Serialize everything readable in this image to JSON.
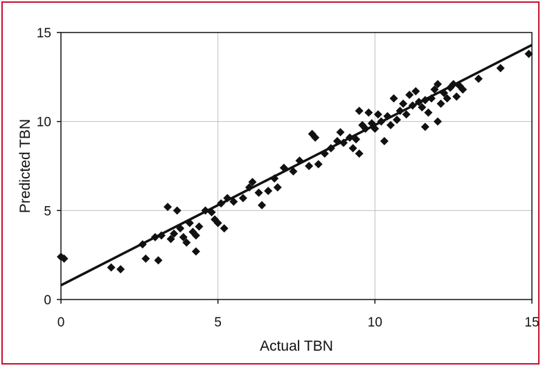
{
  "chart_data": {
    "type": "scatter",
    "title": "",
    "xlabel": "Actual TBN",
    "ylabel": "Predicted TBN",
    "xlim": [
      0,
      15
    ],
    "ylim": [
      0,
      15
    ],
    "x_ticks": [
      "0",
      "5",
      "10",
      "15"
    ],
    "y_ticks": [
      "0",
      "5",
      "10",
      "15"
    ],
    "grid": true,
    "colors": {
      "frame": "#c8102e",
      "points": "#111111",
      "line": "#111111",
      "grid": "#bfbfbf"
    },
    "trend_line": {
      "x": [
        0,
        15
      ],
      "y": [
        0.8,
        14.3
      ]
    },
    "points": [
      {
        "x": 0.0,
        "y": 2.4
      },
      {
        "x": 0.1,
        "y": 2.3
      },
      {
        "x": 1.6,
        "y": 1.8
      },
      {
        "x": 1.9,
        "y": 1.7
      },
      {
        "x": 2.6,
        "y": 3.1
      },
      {
        "x": 2.7,
        "y": 2.3
      },
      {
        "x": 3.1,
        "y": 2.2
      },
      {
        "x": 3.0,
        "y": 3.5
      },
      {
        "x": 3.2,
        "y": 3.6
      },
      {
        "x": 3.4,
        "y": 5.2
      },
      {
        "x": 3.5,
        "y": 3.4
      },
      {
        "x": 3.6,
        "y": 3.7
      },
      {
        "x": 3.7,
        "y": 5.0
      },
      {
        "x": 3.8,
        "y": 4.0
      },
      {
        "x": 3.9,
        "y": 3.5
      },
      {
        "x": 4.0,
        "y": 3.2
      },
      {
        "x": 4.1,
        "y": 4.3
      },
      {
        "x": 4.2,
        "y": 3.8
      },
      {
        "x": 4.3,
        "y": 2.7
      },
      {
        "x": 4.3,
        "y": 3.6
      },
      {
        "x": 4.4,
        "y": 4.1
      },
      {
        "x": 4.6,
        "y": 5.0
      },
      {
        "x": 4.8,
        "y": 4.9
      },
      {
        "x": 4.9,
        "y": 4.5
      },
      {
        "x": 5.0,
        "y": 4.3
      },
      {
        "x": 5.1,
        "y": 5.4
      },
      {
        "x": 5.2,
        "y": 4.0
      },
      {
        "x": 5.3,
        "y": 5.7
      },
      {
        "x": 5.5,
        "y": 5.5
      },
      {
        "x": 5.8,
        "y": 5.7
      },
      {
        "x": 6.0,
        "y": 6.3
      },
      {
        "x": 6.1,
        "y": 6.6
      },
      {
        "x": 6.3,
        "y": 6.0
      },
      {
        "x": 6.4,
        "y": 5.3
      },
      {
        "x": 6.6,
        "y": 6.1
      },
      {
        "x": 6.8,
        "y": 6.8
      },
      {
        "x": 6.9,
        "y": 6.3
      },
      {
        "x": 7.1,
        "y": 7.4
      },
      {
        "x": 7.4,
        "y": 7.2
      },
      {
        "x": 7.6,
        "y": 7.8
      },
      {
        "x": 7.9,
        "y": 7.5
      },
      {
        "x": 8.0,
        "y": 9.3
      },
      {
        "x": 8.1,
        "y": 9.1
      },
      {
        "x": 8.2,
        "y": 7.6
      },
      {
        "x": 8.4,
        "y": 8.2
      },
      {
        "x": 8.6,
        "y": 8.5
      },
      {
        "x": 8.8,
        "y": 8.9
      },
      {
        "x": 8.9,
        "y": 9.4
      },
      {
        "x": 9.0,
        "y": 8.8
      },
      {
        "x": 9.2,
        "y": 9.1
      },
      {
        "x": 9.3,
        "y": 8.5
      },
      {
        "x": 9.4,
        "y": 9.0
      },
      {
        "x": 9.5,
        "y": 8.2
      },
      {
        "x": 9.5,
        "y": 10.6
      },
      {
        "x": 9.6,
        "y": 9.8
      },
      {
        "x": 9.7,
        "y": 9.6
      },
      {
        "x": 9.8,
        "y": 10.5
      },
      {
        "x": 9.9,
        "y": 9.9
      },
      {
        "x": 10.0,
        "y": 9.6
      },
      {
        "x": 10.1,
        "y": 10.4
      },
      {
        "x": 10.2,
        "y": 10.0
      },
      {
        "x": 10.3,
        "y": 8.9
      },
      {
        "x": 10.4,
        "y": 10.3
      },
      {
        "x": 10.5,
        "y": 9.8
      },
      {
        "x": 10.6,
        "y": 11.3
      },
      {
        "x": 10.7,
        "y": 10.1
      },
      {
        "x": 10.8,
        "y": 10.6
      },
      {
        "x": 10.9,
        "y": 11.0
      },
      {
        "x": 11.0,
        "y": 10.4
      },
      {
        "x": 11.1,
        "y": 11.5
      },
      {
        "x": 11.2,
        "y": 10.9
      },
      {
        "x": 11.3,
        "y": 11.7
      },
      {
        "x": 11.4,
        "y": 11.1
      },
      {
        "x": 11.5,
        "y": 10.8
      },
      {
        "x": 11.6,
        "y": 11.2
      },
      {
        "x": 11.6,
        "y": 9.7
      },
      {
        "x": 11.7,
        "y": 10.5
      },
      {
        "x": 11.8,
        "y": 11.3
      },
      {
        "x": 11.9,
        "y": 11.8
      },
      {
        "x": 12.0,
        "y": 10.0
      },
      {
        "x": 12.0,
        "y": 12.1
      },
      {
        "x": 12.1,
        "y": 11.0
      },
      {
        "x": 12.2,
        "y": 11.6
      },
      {
        "x": 12.3,
        "y": 11.3
      },
      {
        "x": 12.4,
        "y": 11.9
      },
      {
        "x": 12.5,
        "y": 12.1
      },
      {
        "x": 12.6,
        "y": 11.4
      },
      {
        "x": 12.7,
        "y": 12.0
      },
      {
        "x": 12.8,
        "y": 11.8
      },
      {
        "x": 13.3,
        "y": 12.4
      },
      {
        "x": 14.0,
        "y": 13.0
      },
      {
        "x": 14.9,
        "y": 13.8
      }
    ]
  }
}
